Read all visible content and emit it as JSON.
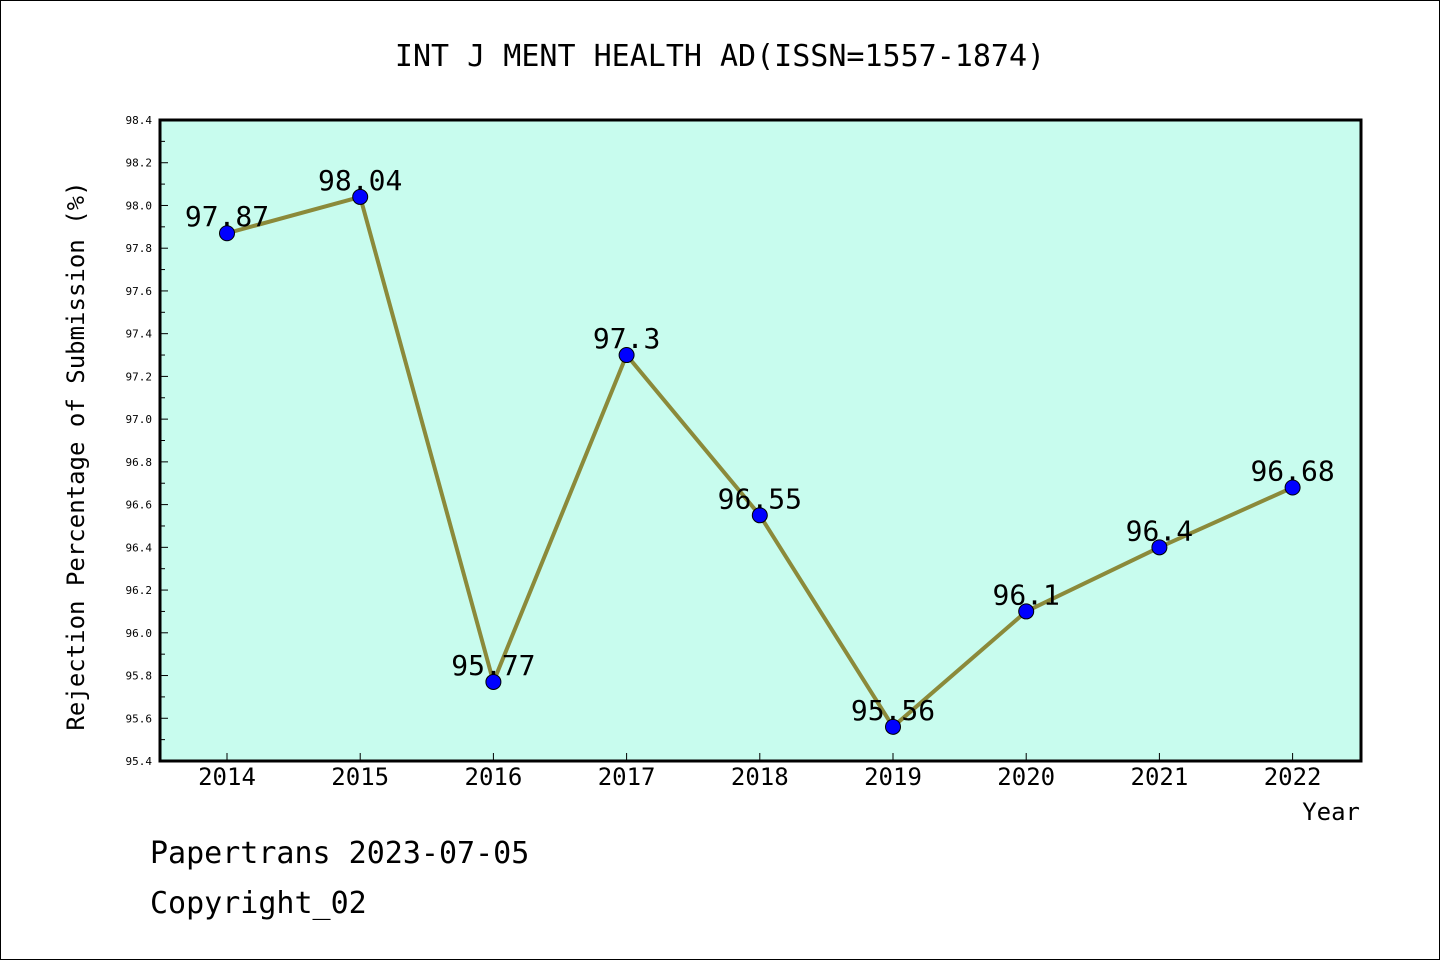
{
  "chart_data": {
    "type": "line",
    "title": "INT J MENT HEALTH AD(ISSN=1557-1874)",
    "xlabel": "Year",
    "ylabel": "Rejection Percentage of Submission (%)",
    "categories": [
      "2014",
      "2015",
      "2016",
      "2017",
      "2018",
      "2019",
      "2020",
      "2021",
      "2022"
    ],
    "series": [
      {
        "values": [
          97.87,
          98.04,
          95.77,
          97.3,
          96.55,
          95.56,
          96.1,
          96.4,
          96.68
        ],
        "labels": [
          "97.87",
          "98.04",
          "95.77",
          "97.3",
          "96.55",
          "95.56",
          "96.1",
          "96.4",
          "96.68"
        ]
      }
    ],
    "ylim": [
      95.4,
      98.4
    ],
    "yticks": [
      "95.4",
      "95.6",
      "95.8",
      "96.0",
      "96.2",
      "96.4",
      "96.6",
      "96.8",
      "97.0",
      "97.2",
      "97.4",
      "97.6",
      "97.8",
      "98.0",
      "98.2",
      "98.4"
    ],
    "grid": false,
    "colors": {
      "plot_background": "#c8fcee",
      "line": "#8b8a3a",
      "marker": "#0000ff"
    }
  },
  "footer": {
    "line1": "Papertrans 2023-07-05",
    "line2": "Copyright_02"
  }
}
